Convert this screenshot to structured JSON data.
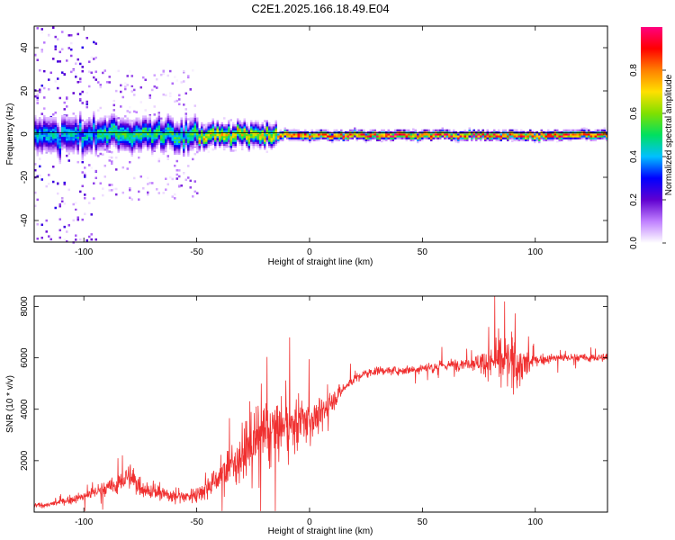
{
  "title": "C2E1.2025.166.18.49.E04",
  "chart_data": [
    {
      "type": "heatmap",
      "xlabel": "Height of straight line (km)",
      "ylabel": "Frequency (Hz)",
      "xlim": [
        -122,
        132
      ],
      "ylim": [
        -50,
        50
      ],
      "x_ticks": [
        -100,
        -50,
        0,
        50,
        100
      ],
      "x_tick_labels": [
        "-100",
        "-50",
        "0",
        "50",
        "100"
      ],
      "y_ticks": [
        -40,
        -20,
        0,
        20,
        40
      ],
      "y_tick_labels": [
        "-40",
        "-20",
        "0",
        "20",
        "40"
      ],
      "colorbar": {
        "label": "Normalized spectral amplitude",
        "range": [
          0,
          1
        ],
        "ticks": [
          0.0,
          0.2,
          0.4,
          0.6,
          0.8
        ],
        "tick_labels": [
          "0.0",
          "0.2",
          "0.4",
          "0.6",
          "0.8"
        ],
        "colors": [
          "#ffffff",
          "#c080ff",
          "#6000d0",
          "#0000ff",
          "#00c0ff",
          "#00e060",
          "#80e000",
          "#ffe000",
          "#ff8000",
          "#ff0000",
          "#ff0080"
        ]
      },
      "center_frequency_hz": 0,
      "segments": [
        {
          "x_range": [
            -122,
            -95
          ],
          "spread_hz": 50,
          "peak_amplitude": 0.45,
          "band_hz": 8
        },
        {
          "x_range": [
            -95,
            -50
          ],
          "spread_hz": 30,
          "peak_amplitude": 0.55,
          "band_hz": 7
        },
        {
          "x_range": [
            -50,
            -15
          ],
          "spread_hz": 8,
          "peak_amplitude": 0.75,
          "band_hz": 5
        },
        {
          "x_range": [
            -15,
            132
          ],
          "spread_hz": 3,
          "peak_amplitude": 0.95,
          "band_hz": 2
        }
      ]
    },
    {
      "type": "line",
      "xlabel": "Height of straight line (km)",
      "ylabel": "SNR (10 * v/v)",
      "xlim": [
        -122,
        132
      ],
      "ylim": [
        0,
        8400
      ],
      "x_ticks": [
        -100,
        -50,
        0,
        50,
        100
      ],
      "x_tick_labels": [
        "-100",
        "-50",
        "0",
        "50",
        "100"
      ],
      "y_ticks": [
        2000,
        4000,
        6000,
        8000
      ],
      "y_tick_labels": [
        "2000",
        "4000",
        "6000",
        "8000"
      ],
      "series_color": "#f03030",
      "series": [
        {
          "x": [
            -122,
            -115,
            -105,
            -100,
            -95,
            -90,
            -85,
            -80,
            -75,
            -70,
            -65,
            -60,
            -55,
            -50,
            -45,
            -40,
            -35,
            -30,
            -25,
            -20,
            -15,
            -10,
            -5,
            0,
            5,
            10,
            15,
            20,
            25,
            30,
            40,
            50,
            60,
            70,
            80,
            85,
            90,
            95,
            100,
            110,
            120,
            132
          ],
          "y": [
            250,
            300,
            500,
            600,
            800,
            900,
            1100,
            1400,
            1000,
            800,
            700,
            650,
            600,
            700,
            1000,
            1400,
            1800,
            2200,
            2700,
            3000,
            3200,
            3300,
            3500,
            3600,
            3800,
            4300,
            4800,
            5200,
            5400,
            5500,
            5500,
            5600,
            5700,
            5800,
            5850,
            5900,
            5800,
            5700,
            5900,
            6000,
            6000,
            6000
          ]
        }
      ],
      "noise_amplitude": [
        150,
        150,
        250,
        300,
        400,
        500,
        600,
        800,
        600,
        500,
        450,
        400,
        400,
        500,
        700,
        900,
        1200,
        1500,
        1800,
        2000,
        2000,
        1800,
        1500,
        1300,
        1000,
        600,
        400,
        300,
        250,
        250,
        250,
        300,
        350,
        350,
        900,
        1600,
        1500,
        1300,
        300,
        250,
        250,
        250
      ]
    }
  ]
}
